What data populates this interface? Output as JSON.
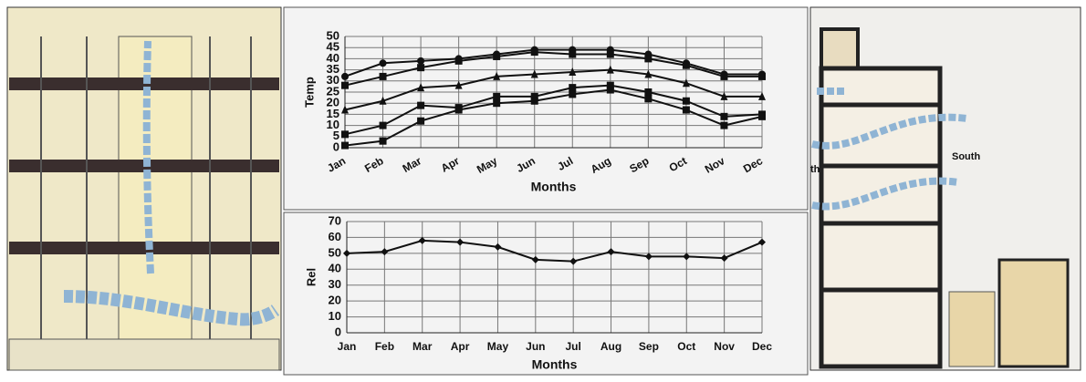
{
  "chart_data": [
    {
      "type": "line",
      "y_label": "Temp",
      "x_label": "Months",
      "categories": [
        "Jan",
        "Feb",
        "Mar",
        "Apr",
        "May",
        "Jun",
        "Jul",
        "Aug",
        "Sep",
        "Oct",
        "Nov",
        "Dec"
      ],
      "series": [
        {
          "color": "#111111",
          "marker": "circle",
          "values": [
            32,
            38,
            39,
            40,
            42,
            44,
            44,
            44,
            42,
            38,
            33,
            33
          ]
        },
        {
          "color": "#111111",
          "marker": "square",
          "values": [
            28,
            32,
            36,
            39,
            41,
            43,
            42,
            42,
            40,
            37,
            32,
            32
          ]
        },
        {
          "color": "#111111",
          "marker": "triangle",
          "values": [
            17,
            21,
            27,
            28,
            32,
            33,
            34,
            35,
            33,
            29,
            23,
            23
          ]
        },
        {
          "color": "#111111",
          "marker": "square",
          "values": [
            6,
            10,
            19,
            18,
            23,
            23,
            27,
            28,
            25,
            21,
            14,
            15
          ]
        },
        {
          "color": "#111111",
          "marker": "square",
          "values": [
            1,
            3,
            12,
            17,
            20,
            21,
            24,
            26,
            22,
            17,
            10,
            14
          ]
        }
      ],
      "ylim": [
        0,
        50
      ],
      "yticks": [
        0,
        5,
        10,
        15,
        20,
        25,
        30,
        35,
        40,
        45,
        50
      ],
      "grid": true,
      "rotated_x_labels": true
    },
    {
      "type": "line",
      "y_label": "Rel",
      "x_label": "Months",
      "categories": [
        "Jan",
        "Feb",
        "Mar",
        "Apr",
        "May",
        "Jun",
        "Jul",
        "Aug",
        "Sep",
        "Oct",
        "Nov",
        "Dec"
      ],
      "series": [
        {
          "color": "#111111",
          "marker": "diamond",
          "values": [
            50,
            51,
            58,
            57,
            54,
            46,
            45,
            51,
            48,
            48,
            47,
            57
          ]
        }
      ],
      "ylim": [
        0,
        70
      ],
      "yticks": [
        0,
        10,
        20,
        30,
        40,
        50,
        60,
        70
      ],
      "grid": true,
      "rotated_x_labels": false
    }
  ],
  "right_drawing": {
    "labels": [
      "th",
      "South"
    ]
  }
}
